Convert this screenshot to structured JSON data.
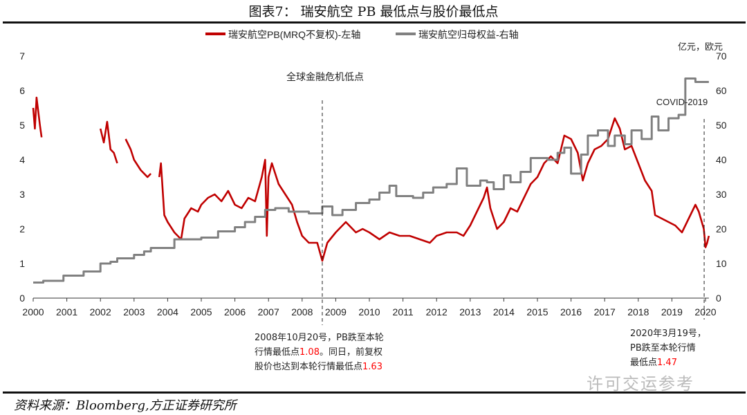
{
  "header": {
    "title": "图表7：  瑞安航空 PB 最低点与股价最低点"
  },
  "source": "资料来源：Bloomberg,方正证券研究所",
  "watermark": "许可交运参考",
  "notes": {
    "gfc": {
      "line1": "2008年10月20号，PB跌至本轮",
      "line2a": "行情最低点",
      "v1": "1.08",
      "line2b": "。同日，前复权",
      "line3a": "股价也达到本轮行情最低点",
      "v2": "1.63"
    },
    "covid": {
      "line1": "2020年3月19号，",
      "line2": "PB跌至本轮行情",
      "line3a": "最低点",
      "v": "1.47"
    }
  },
  "colors": {
    "pb": "#c00000",
    "equity": "#808080",
    "highlight": "#ff0000"
  },
  "chart_data": {
    "type": "line",
    "title": "图表7：  瑞安航空 PB 最低点与股价最低点",
    "xlim": [
      2000,
      2020.1
    ],
    "x_ticks": [
      "2000",
      "2001",
      "2002",
      "2003",
      "2004",
      "2005",
      "2006",
      "2007",
      "2008",
      "2009",
      "2010",
      "2011",
      "2012",
      "2013",
      "2014",
      "2015",
      "2016",
      "2017",
      "2018",
      "2019",
      "2020"
    ],
    "y_left": {
      "lim": [
        0,
        7
      ],
      "ticks": [
        "0",
        "1",
        "2",
        "3",
        "4",
        "5",
        "6",
        "7"
      ]
    },
    "y_right": {
      "lim": [
        0,
        70
      ],
      "ticks": [
        "0",
        "10",
        "20",
        "30",
        "40",
        "50",
        "60",
        "70"
      ],
      "unit": "亿元，欧元"
    },
    "legend_position": "top",
    "grid": false,
    "annotations": [
      {
        "text": "全球金融危机低点",
        "x": 2008.6
      },
      {
        "text": "COVID-2019",
        "x": 2019.96
      }
    ],
    "series": [
      {
        "name": "瑞安航空PB(MRQ不复权)-左轴",
        "axis": "left",
        "style": "line",
        "points": [
          [
            2000.0,
            5.5
          ],
          [
            2000.05,
            4.9
          ],
          [
            2000.1,
            5.8
          ],
          [
            2000.15,
            5.4
          ],
          [
            2000.2,
            5.0
          ],
          [
            2000.25,
            4.65
          ],
          null,
          [
            2002.0,
            4.9
          ],
          [
            2002.1,
            4.5
          ],
          [
            2002.2,
            5.1
          ],
          [
            2002.3,
            4.3
          ],
          [
            2002.4,
            4.2
          ],
          [
            2002.5,
            3.9
          ],
          null,
          [
            2002.75,
            4.6
          ],
          [
            2002.9,
            4.3
          ],
          [
            2003.0,
            4.0
          ],
          [
            2003.2,
            3.7
          ],
          [
            2003.4,
            3.5
          ],
          [
            2003.5,
            3.6
          ],
          null,
          [
            2003.75,
            3.5
          ],
          [
            2003.8,
            3.9
          ],
          [
            2003.9,
            2.4
          ],
          [
            2004.0,
            2.2
          ],
          [
            2004.2,
            1.9
          ],
          [
            2004.4,
            1.7
          ],
          [
            2004.5,
            2.3
          ],
          [
            2004.7,
            2.6
          ],
          [
            2004.9,
            2.5
          ],
          [
            2005.0,
            2.7
          ],
          [
            2005.2,
            2.9
          ],
          [
            2005.4,
            3.0
          ],
          [
            2005.6,
            2.8
          ],
          [
            2005.8,
            3.1
          ],
          [
            2006.0,
            2.7
          ],
          [
            2006.2,
            2.6
          ],
          [
            2006.4,
            2.9
          ],
          [
            2006.6,
            2.8
          ],
          [
            2006.8,
            3.5
          ],
          [
            2006.9,
            4.0
          ],
          [
            2006.95,
            1.8
          ],
          [
            2007.0,
            3.5
          ],
          [
            2007.1,
            3.9
          ],
          [
            2007.3,
            3.3
          ],
          [
            2007.5,
            3.0
          ],
          [
            2007.7,
            2.7
          ],
          [
            2007.85,
            2.2
          ],
          [
            2008.0,
            1.8
          ],
          [
            2008.2,
            1.6
          ],
          [
            2008.45,
            1.6
          ],
          [
            2008.6,
            1.08
          ],
          [
            2008.75,
            1.6
          ],
          [
            2009.0,
            1.9
          ],
          [
            2009.3,
            2.2
          ],
          [
            2009.6,
            1.9
          ],
          [
            2009.8,
            2.0
          ],
          [
            2010.0,
            1.9
          ],
          [
            2010.3,
            1.7
          ],
          [
            2010.6,
            1.9
          ],
          [
            2010.9,
            1.8
          ],
          [
            2011.2,
            1.8
          ],
          [
            2011.5,
            1.7
          ],
          [
            2011.8,
            1.6
          ],
          [
            2012.0,
            1.8
          ],
          [
            2012.3,
            1.9
          ],
          [
            2012.6,
            1.9
          ],
          [
            2012.8,
            1.8
          ],
          [
            2013.0,
            2.1
          ],
          [
            2013.2,
            2.5
          ],
          [
            2013.4,
            2.9
          ],
          [
            2013.5,
            3.2
          ],
          [
            2013.6,
            2.6
          ],
          [
            2013.8,
            2.0
          ],
          [
            2014.0,
            2.2
          ],
          [
            2014.2,
            2.6
          ],
          [
            2014.4,
            2.5
          ],
          [
            2014.6,
            2.9
          ],
          [
            2014.8,
            3.3
          ],
          [
            2015.0,
            3.5
          ],
          [
            2015.2,
            3.9
          ],
          [
            2015.4,
            4.1
          ],
          [
            2015.6,
            3.9
          ],
          [
            2015.8,
            4.7
          ],
          [
            2016.0,
            4.6
          ],
          [
            2016.2,
            4.2
          ],
          [
            2016.35,
            3.4
          ],
          [
            2016.5,
            3.9
          ],
          [
            2016.7,
            4.3
          ],
          [
            2016.9,
            4.4
          ],
          [
            2017.1,
            4.6
          ],
          [
            2017.3,
            5.2
          ],
          [
            2017.45,
            4.9
          ],
          [
            2017.6,
            4.3
          ],
          [
            2017.8,
            4.4
          ],
          [
            2018.0,
            3.9
          ],
          [
            2018.2,
            3.4
          ],
          [
            2018.4,
            3.1
          ],
          [
            2018.5,
            2.4
          ],
          [
            2018.7,
            2.3
          ],
          [
            2018.9,
            2.2
          ],
          [
            2019.1,
            2.1
          ],
          [
            2019.3,
            1.9
          ],
          [
            2019.5,
            2.3
          ],
          [
            2019.7,
            2.7
          ],
          [
            2019.8,
            2.5
          ],
          [
            2019.95,
            2.0
          ],
          [
            2020.0,
            1.47
          ],
          [
            2020.05,
            1.6
          ],
          [
            2020.1,
            1.8
          ]
        ]
      },
      {
        "name": "瑞安航空归母权益-右轴",
        "axis": "right",
        "style": "step",
        "points": [
          [
            2000.0,
            4.5
          ],
          [
            2000.3,
            5
          ],
          [
            2000.9,
            6.5
          ],
          [
            2001.5,
            7.7
          ],
          [
            2002.0,
            10
          ],
          [
            2002.3,
            10.5
          ],
          [
            2002.5,
            11.5
          ],
          [
            2003.0,
            12.5
          ],
          [
            2003.3,
            13.5
          ],
          [
            2003.5,
            14.5
          ],
          [
            2004.2,
            17
          ],
          [
            2005.0,
            17.5
          ],
          [
            2005.5,
            19.3
          ],
          [
            2006.0,
            20.5
          ],
          [
            2006.3,
            22
          ],
          [
            2006.6,
            23.5
          ],
          [
            2006.9,
            25.5
          ],
          [
            2007.2,
            26
          ],
          [
            2007.6,
            25
          ],
          [
            2008.2,
            24.5
          ],
          [
            2008.6,
            26.5
          ],
          [
            2008.9,
            24
          ],
          [
            2009.2,
            25.5
          ],
          [
            2009.6,
            27.5
          ],
          [
            2010.0,
            28.5
          ],
          [
            2010.3,
            30.5
          ],
          [
            2010.6,
            32.5
          ],
          [
            2010.8,
            29.5
          ],
          [
            2011.3,
            29
          ],
          [
            2011.6,
            30.5
          ],
          [
            2011.9,
            32
          ],
          [
            2012.3,
            33
          ],
          [
            2012.6,
            37.5
          ],
          [
            2012.9,
            32.5
          ],
          [
            2013.3,
            34
          ],
          [
            2013.5,
            33.5
          ],
          [
            2013.7,
            31.5
          ],
          [
            2014.0,
            35.5
          ],
          [
            2014.2,
            33.5
          ],
          [
            2014.5,
            36.5
          ],
          [
            2014.8,
            40.5
          ],
          [
            2015.3,
            40
          ],
          [
            2015.6,
            42
          ],
          [
            2015.8,
            43.5
          ],
          [
            2016.0,
            36
          ],
          [
            2016.3,
            41.5
          ],
          [
            2016.5,
            47
          ],
          [
            2016.8,
            48.5
          ],
          [
            2017.1,
            44
          ],
          [
            2017.3,
            47
          ],
          [
            2017.6,
            44.5
          ],
          [
            2017.8,
            48.5
          ],
          [
            2018.1,
            46
          ],
          [
            2018.4,
            52.5
          ],
          [
            2018.6,
            48.5
          ],
          [
            2018.9,
            52
          ],
          [
            2019.2,
            53
          ],
          [
            2019.4,
            63.5
          ],
          [
            2019.7,
            62.5
          ],
          [
            2020.1,
            62.5
          ]
        ]
      }
    ]
  }
}
